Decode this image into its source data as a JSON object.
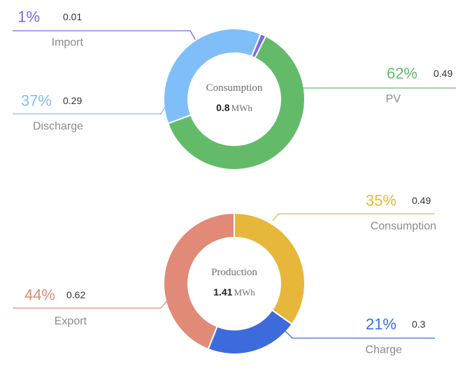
{
  "chart_data": [
    {
      "type": "pie",
      "center_title": "Consumption",
      "center_value": "0.8",
      "center_unit": "MWh",
      "slices": [
        {
          "label": "Import",
          "percent": "1%",
          "value": 0.01,
          "color": "#7b68ee",
          "label_side": "left"
        },
        {
          "label": "PV",
          "percent": "62%",
          "value": 0.49,
          "color": "#63bb6a",
          "label_side": "right"
        },
        {
          "label": "Discharge",
          "percent": "37%",
          "value": 0.29,
          "color": "#7fbef8",
          "label_side": "left"
        }
      ]
    },
    {
      "type": "pie",
      "center_title": "Production",
      "center_value": "1.41",
      "center_unit": "MWh",
      "slices": [
        {
          "label": "Consumption",
          "percent": "35%",
          "value": 0.49,
          "color": "#e6b73a",
          "label_side": "right"
        },
        {
          "label": "Charge",
          "percent": "21%",
          "value": 0.3,
          "color": "#3e6bdc",
          "label_side": "right"
        },
        {
          "label": "Export",
          "percent": "44%",
          "value": 0.62,
          "color": "#e08a77",
          "label_side": "left"
        }
      ]
    }
  ]
}
